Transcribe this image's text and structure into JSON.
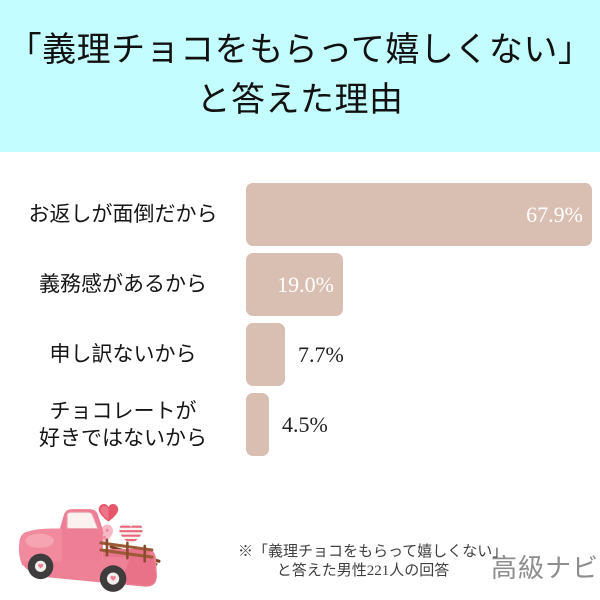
{
  "title": {
    "line1": "「義理チョコをもらって嬉しくない」",
    "line2": "と答えた理由"
  },
  "chart_data": {
    "type": "bar",
    "orientation": "horizontal",
    "title": "「義理チョコをもらって嬉しくない」と答えた理由",
    "categories": [
      "お返しが面倒だから",
      "義務感があるから",
      "申し訳ないから",
      "チョコレートが好きではないから"
    ],
    "category_lines": [
      [
        "お返しが面倒だから"
      ],
      [
        "義務感があるから"
      ],
      [
        "申し訳ないから"
      ],
      [
        "チョコレートが",
        "好きではないから"
      ]
    ],
    "values": [
      67.9,
      19.0,
      7.7,
      4.5
    ],
    "value_labels": [
      "67.9%",
      "19.0%",
      "7.7%",
      "4.5%"
    ],
    "unit": "%",
    "xlim": [
      0,
      70
    ],
    "legend": "none",
    "grid": false,
    "note": "※「義理チョコをもらって嬉しくない」と答えた男性221人の回答"
  },
  "footer": {
    "note_line1": "※「義理チョコをもらって嬉しくない」",
    "note_line2": "と答えた男性221人の回答",
    "brand": "高級ナビ"
  },
  "colors": {
    "header_bg": "#c4fdff",
    "bar": "#d9beb2",
    "value_inside": "#ffffff",
    "value_outside": "#1f1f1f",
    "title_text": "#111111",
    "note_text": "#3f3f3f",
    "brand_text": "#8d8d8d"
  },
  "illustration": {
    "name": "watercolor-pink-truck-with-hearts-and-chocolates"
  }
}
